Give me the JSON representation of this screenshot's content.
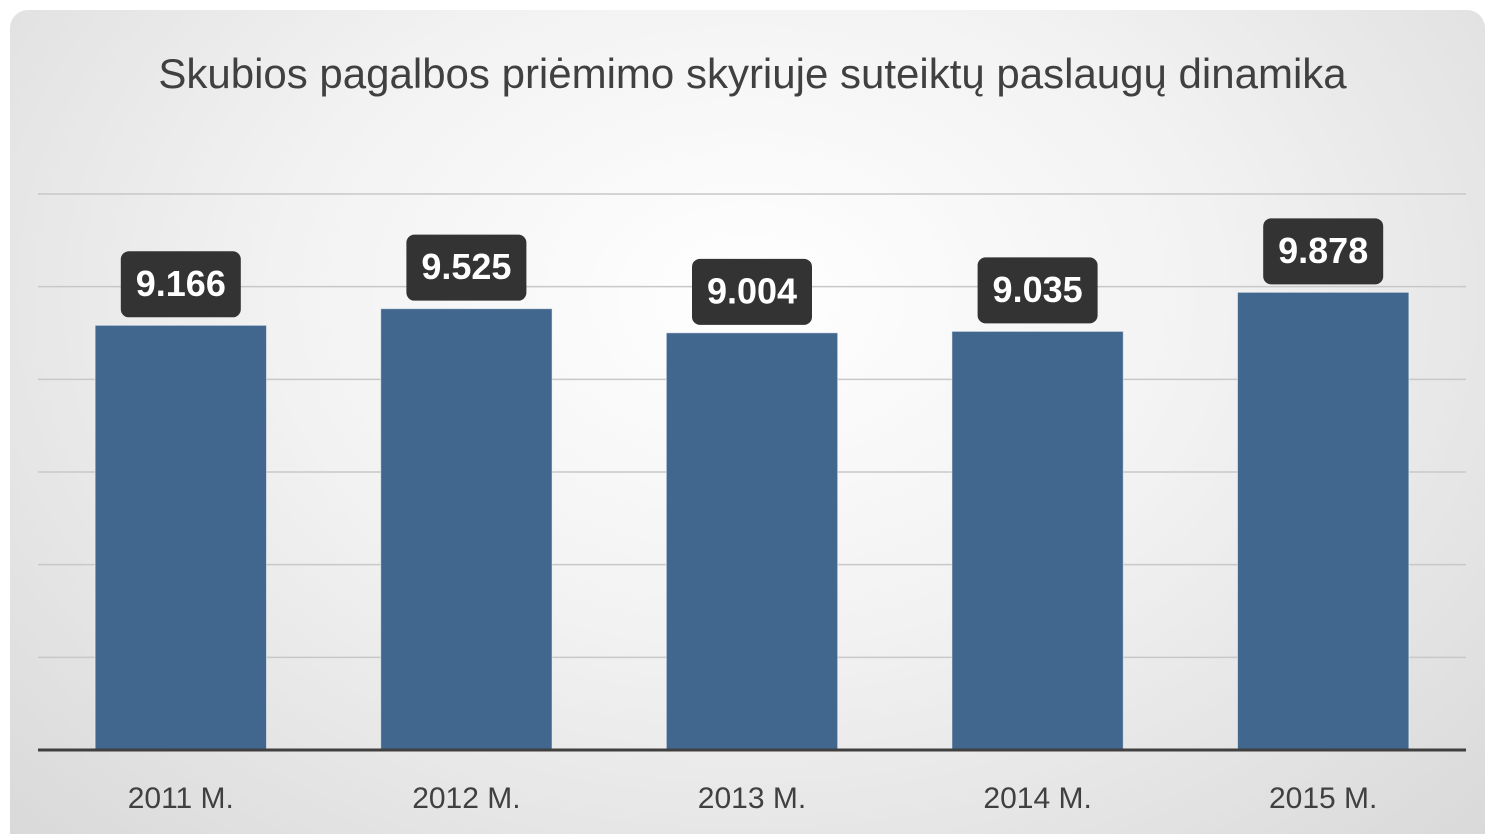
{
  "chart_data": {
    "type": "bar",
    "title": "Skubios pagalbos priėmimo skyriuje suteiktų paslaugų dinamika",
    "categories": [
      "2011 M.",
      "2012 M.",
      "2013 M.",
      "2014 M.",
      "2015 M."
    ],
    "values": [
      9166,
      9525,
      9004,
      9035,
      9878
    ],
    "value_labels": [
      "9.166",
      "9.525",
      "9.004",
      "9.035",
      "9.878"
    ],
    "color": "#41678f",
    "ylim": [
      0,
      12000
    ],
    "yticks": [
      0,
      2000,
      4000,
      6000,
      8000,
      10000,
      12000
    ],
    "grid": true
  }
}
